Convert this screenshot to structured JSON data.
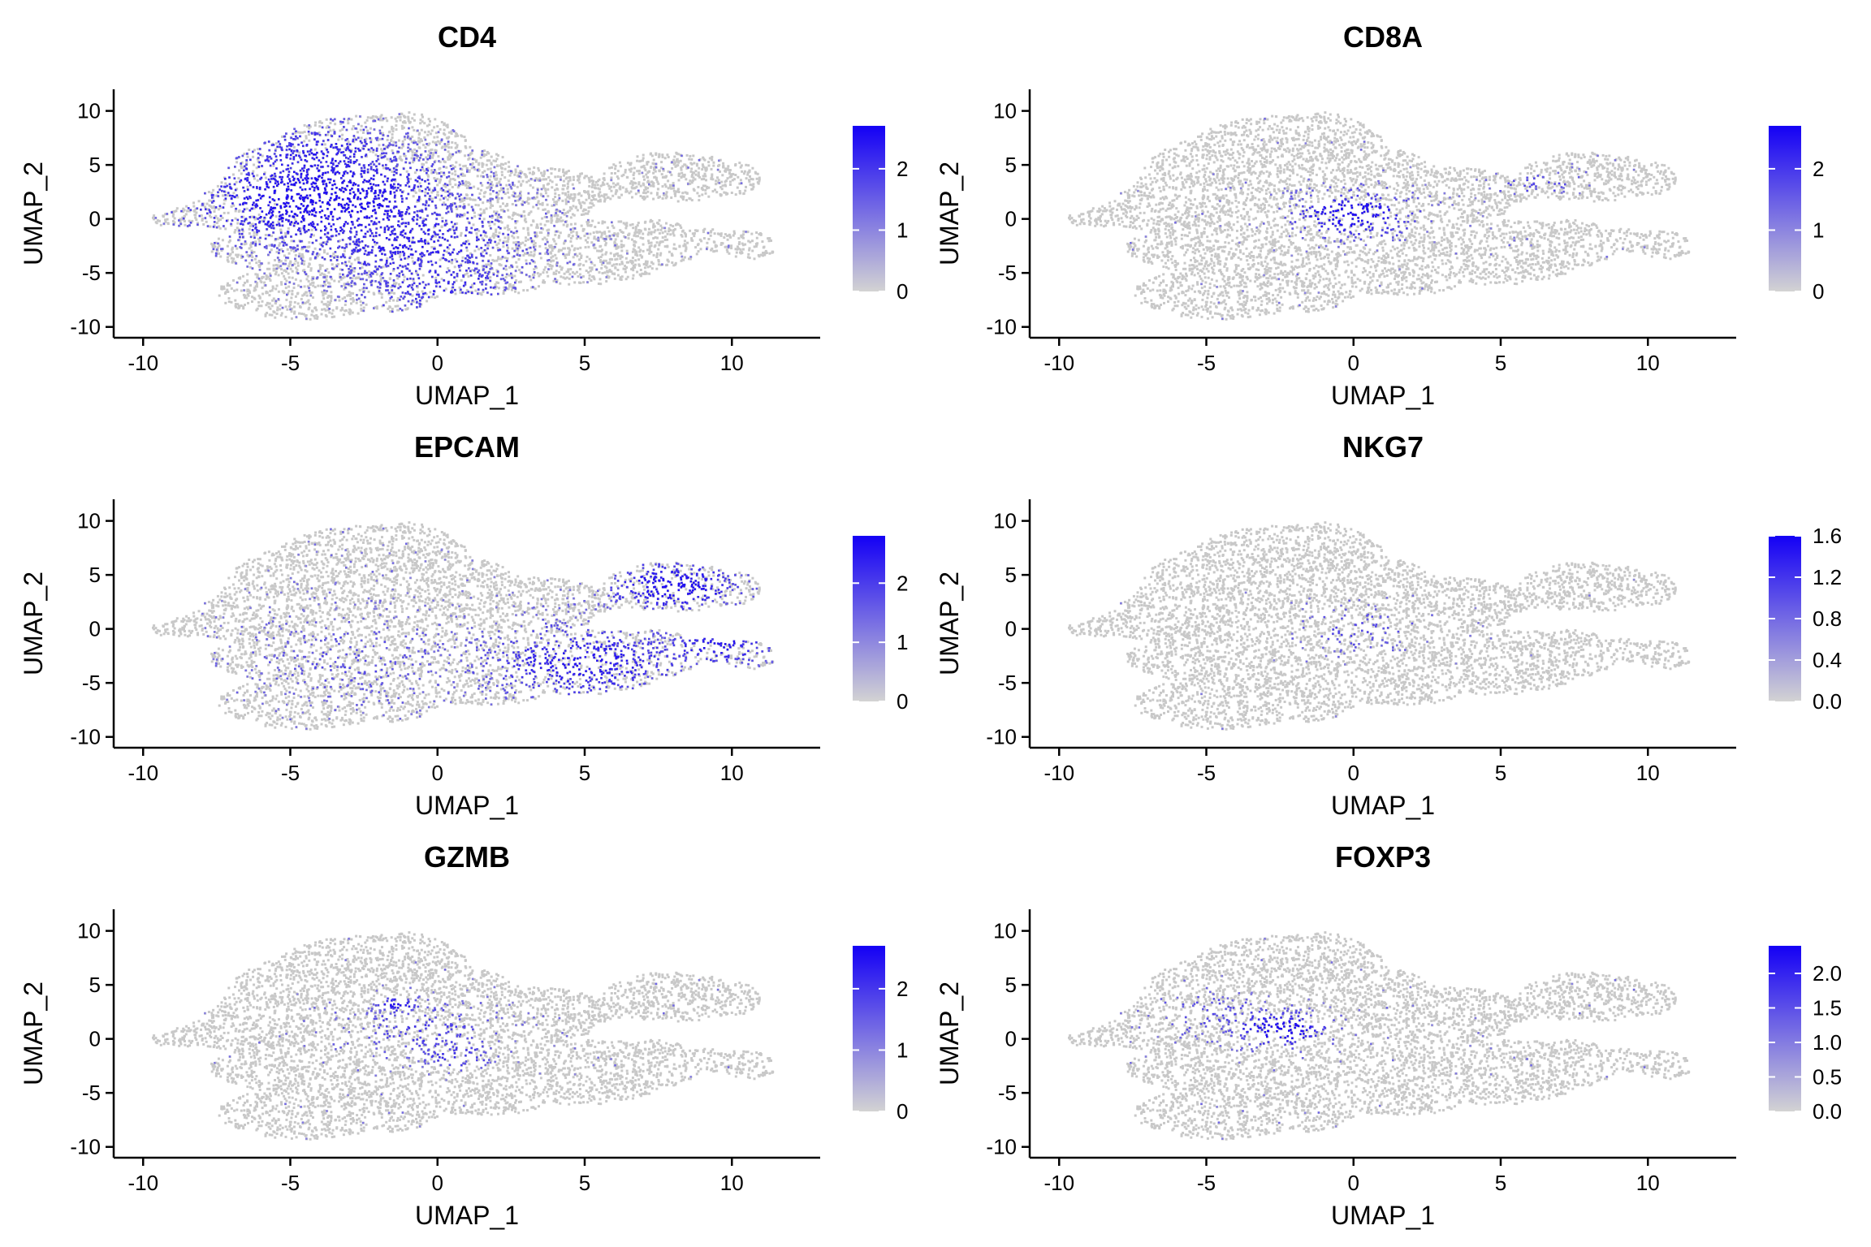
{
  "figure": {
    "xlabel": "UMAP_1",
    "ylabel": "UMAP_2",
    "xlim": [
      -11,
      13
    ],
    "ylim": [
      -11,
      12
    ],
    "x_ticks": [
      -10,
      -5,
      0,
      5,
      10
    ],
    "y_ticks": [
      10,
      5,
      0,
      -5,
      -10
    ],
    "low_color": "#d3d3d3",
    "high_color": "#1400f5",
    "point_color": "#c8c8c8"
  },
  "chart_data": [
    {
      "type": "scatter",
      "title": "CD4",
      "xlabel": "UMAP_1",
      "ylabel": "UMAP_2",
      "colorbar": {
        "min": 0,
        "max": 2.7,
        "ticks": [
          0,
          1,
          2
        ],
        "tick_labels": [
          "0",
          "1",
          "2"
        ]
      },
      "expression_hotspots": [
        {
          "x": -4,
          "y": 2,
          "level": 1.0,
          "spread": 4.5
        },
        {
          "x": -1,
          "y": -2,
          "level": 0.7,
          "spread": 4
        },
        {
          "x": 0,
          "y": -6,
          "level": 0.6,
          "spread": 3
        },
        {
          "x": -4,
          "y": 6,
          "level": 0.7,
          "spread": 3
        }
      ],
      "background_expression": 0.03
    },
    {
      "type": "scatter",
      "title": "CD8A",
      "xlabel": "UMAP_1",
      "ylabel": "UMAP_2",
      "colorbar": {
        "min": 0,
        "max": 2.7,
        "ticks": [
          0,
          1,
          2
        ],
        "tick_labels": [
          "0",
          "1",
          "2"
        ]
      },
      "expression_hotspots": [
        {
          "x": 0,
          "y": 0.5,
          "level": 1.0,
          "spread": 2
        },
        {
          "x": 6,
          "y": 3.5,
          "level": 0.45,
          "spread": 1.3
        }
      ],
      "background_expression": 0.012
    },
    {
      "type": "scatter",
      "title": "EPCAM",
      "xlabel": "UMAP_1",
      "ylabel": "UMAP_2",
      "colorbar": {
        "min": 0,
        "max": 2.8,
        "ticks": [
          0,
          1,
          2
        ],
        "tick_labels": [
          "0",
          "1",
          "2"
        ]
      },
      "expression_hotspots": [
        {
          "x": 8,
          "y": 4,
          "level": 1.0,
          "spread": 2.2
        },
        {
          "x": 5,
          "y": -3,
          "level": 0.8,
          "spread": 3.5
        },
        {
          "x": 9.5,
          "y": -1.5,
          "level": 0.8,
          "spread": 1.8
        },
        {
          "x": -3,
          "y": -3,
          "level": 0.35,
          "spread": 4
        }
      ],
      "background_expression": 0.04
    },
    {
      "type": "scatter",
      "title": "NKG7",
      "xlabel": "UMAP_1",
      "ylabel": "UMAP_2",
      "colorbar": {
        "min": 0,
        "max": 1.6,
        "ticks": [
          0,
          0.4,
          0.8,
          1.2,
          1.6
        ],
        "tick_labels": [
          "0.0",
          "0.4",
          "0.8",
          "1.2",
          "1.6"
        ]
      },
      "expression_hotspots": [
        {
          "x": 0,
          "y": 0,
          "level": 0.4,
          "spread": 2
        }
      ],
      "background_expression": 0.002
    },
    {
      "type": "scatter",
      "title": "GZMB",
      "xlabel": "UMAP_1",
      "ylabel": "UMAP_2",
      "colorbar": {
        "min": 0,
        "max": 2.7,
        "ticks": [
          0,
          1,
          2
        ],
        "tick_labels": [
          "0",
          "1",
          "2"
        ]
      },
      "expression_hotspots": [
        {
          "x": -1.4,
          "y": 3.3,
          "level": 1.0,
          "spread": 0.6
        },
        {
          "x": 0.5,
          "y": -1.5,
          "level": 0.6,
          "spread": 1.2
        },
        {
          "x": -0.5,
          "y": 1,
          "level": 0.5,
          "spread": 2.5
        }
      ],
      "background_expression": 0.008
    },
    {
      "type": "scatter",
      "title": "FOXP3",
      "xlabel": "UMAP_1",
      "ylabel": "UMAP_2",
      "colorbar": {
        "min": 0,
        "max": 2.4,
        "ticks": [
          0,
          0.5,
          1,
          1.5,
          2
        ],
        "tick_labels": [
          "0.0",
          "0.5",
          "1.0",
          "1.5",
          "2.0"
        ]
      },
      "expression_hotspots": [
        {
          "x": -2.5,
          "y": 1,
          "level": 1.0,
          "spread": 1.6
        },
        {
          "x": -5,
          "y": 2.5,
          "level": 0.35,
          "spread": 2
        }
      ],
      "background_expression": 0.008
    }
  ]
}
